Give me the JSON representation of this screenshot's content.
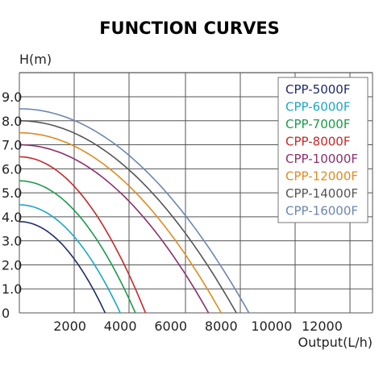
{
  "chart_data": {
    "type": "line",
    "title": "FUNCTION CURVES",
    "ylabel": "H(m)",
    "xlabel": "Output(L/h)",
    "xlim": [
      0,
      14000
    ],
    "ylim": [
      0,
      9.0
    ],
    "x_ticks": [
      2000,
      4000,
      6000,
      8000,
      10000,
      12000
    ],
    "y_ticks": [
      "0",
      "1.0",
      "2.0",
      "3.0",
      "4.0",
      "5.0",
      "6.0",
      "7.0",
      "8.0",
      "9.0"
    ],
    "grid": true,
    "legend_position": "top-right",
    "series": [
      {
        "name": "CPP-5000F",
        "color": "#1f2a6b",
        "max_head": 3.8,
        "max_flow": 3400
      },
      {
        "name": "CPP-6000F",
        "color": "#1aa6c9",
        "max_head": 4.5,
        "max_flow": 4000
      },
      {
        "name": "CPP-7000F",
        "color": "#1b9a4a",
        "max_head": 5.5,
        "max_flow": 4600
      },
      {
        "name": "CPP-8000F",
        "color": "#c82828",
        "max_head": 6.5,
        "max_flow": 5000
      },
      {
        "name": "CPP-10000F",
        "color": "#8b2f6b",
        "max_head": 7.0,
        "max_flow": 7500
      },
      {
        "name": "CPP-12000F",
        "color": "#e08a1e",
        "max_head": 7.5,
        "max_flow": 8000
      },
      {
        "name": "CPP-14000F",
        "color": "#555555",
        "max_head": 8.0,
        "max_flow": 8600
      },
      {
        "name": "CPP-16000F",
        "color": "#6a86b0",
        "max_head": 8.5,
        "max_flow": 9100
      }
    ]
  }
}
